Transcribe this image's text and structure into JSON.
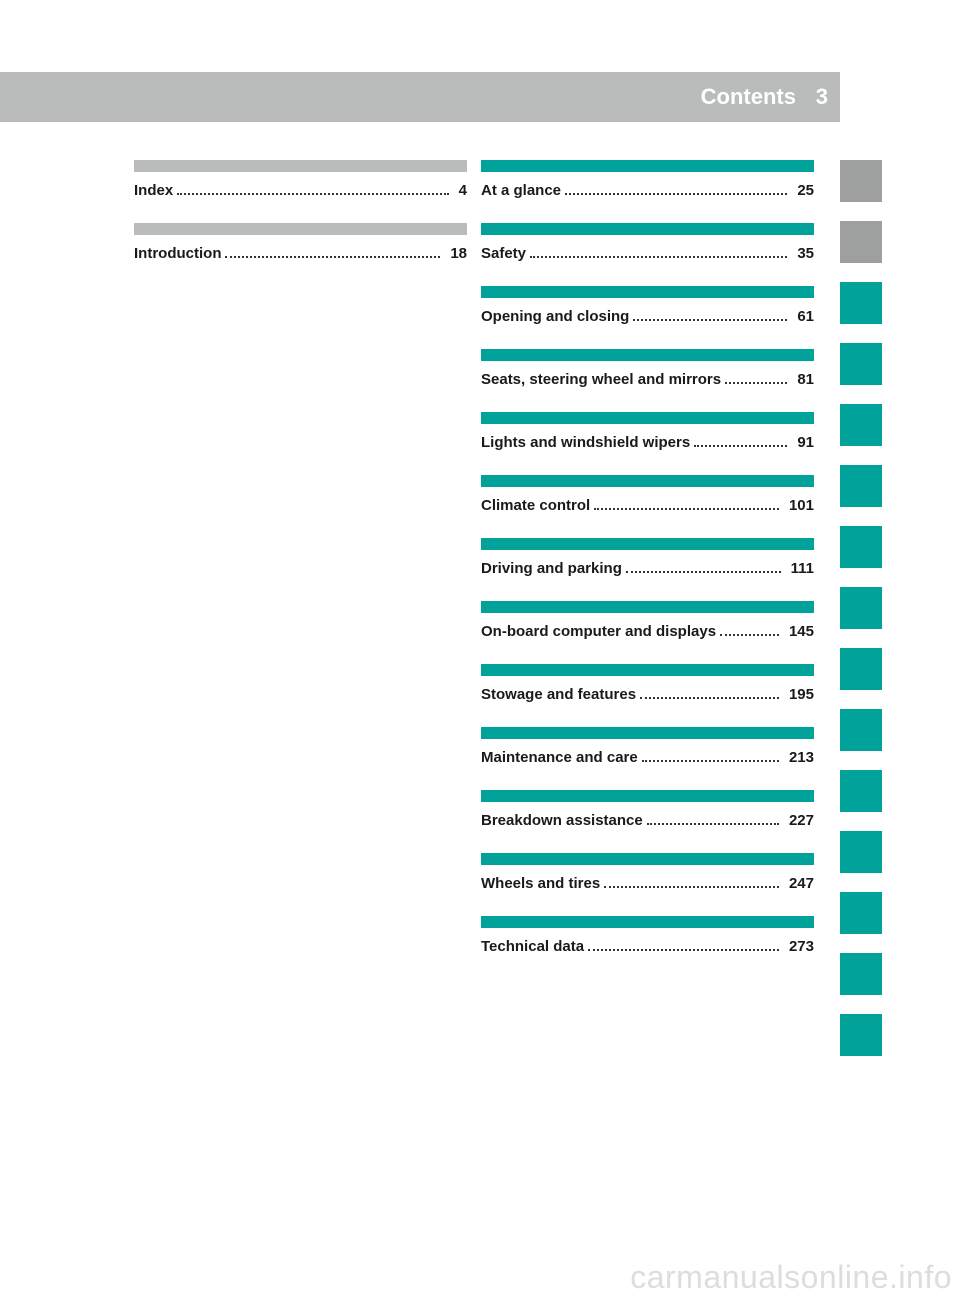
{
  "header": {
    "title": "Contents",
    "page_number": "3"
  },
  "colors": {
    "gray": "#babbbb",
    "teal": "#00a29a",
    "tab_gray": "#9e9f9f",
    "text": "#1a1a1a",
    "watermark": "#dddddd"
  },
  "left_column": [
    {
      "title": "Index",
      "page": "4",
      "bar": "gray"
    },
    {
      "title": "Introduction",
      "page": "18",
      "bar": "gray"
    }
  ],
  "right_column": [
    {
      "title": "At a glance",
      "page": "25",
      "bar": "teal"
    },
    {
      "title": "Safety",
      "page": "35",
      "bar": "teal"
    },
    {
      "title": "Opening and closing",
      "page": "61",
      "bar": "teal"
    },
    {
      "title": "Seats, steering wheel and mirrors",
      "page": "81",
      "bar": "teal"
    },
    {
      "title": "Lights and windshield wipers",
      "page": "91",
      "bar": "teal"
    },
    {
      "title": "Climate control",
      "page": "101",
      "bar": "teal"
    },
    {
      "title": "Driving and parking",
      "page": "111",
      "bar": "teal"
    },
    {
      "title": "On-board computer and displays",
      "page": "145",
      "bar": "teal"
    },
    {
      "title": "Stowage and features",
      "page": "195",
      "bar": "teal"
    },
    {
      "title": "Maintenance and care",
      "page": "213",
      "bar": "teal"
    },
    {
      "title": "Breakdown assistance",
      "page": "227",
      "bar": "teal"
    },
    {
      "title": "Wheels and tires",
      "page": "247",
      "bar": "teal"
    },
    {
      "title": "Technical data",
      "page": "273",
      "bar": "teal"
    }
  ],
  "side_tabs": [
    "gray",
    "gray",
    "teal",
    "teal",
    "teal",
    "teal",
    "teal",
    "teal",
    "teal",
    "teal",
    "teal",
    "teal",
    "teal",
    "teal",
    "teal"
  ],
  "watermark": "carmanualsonline.info"
}
